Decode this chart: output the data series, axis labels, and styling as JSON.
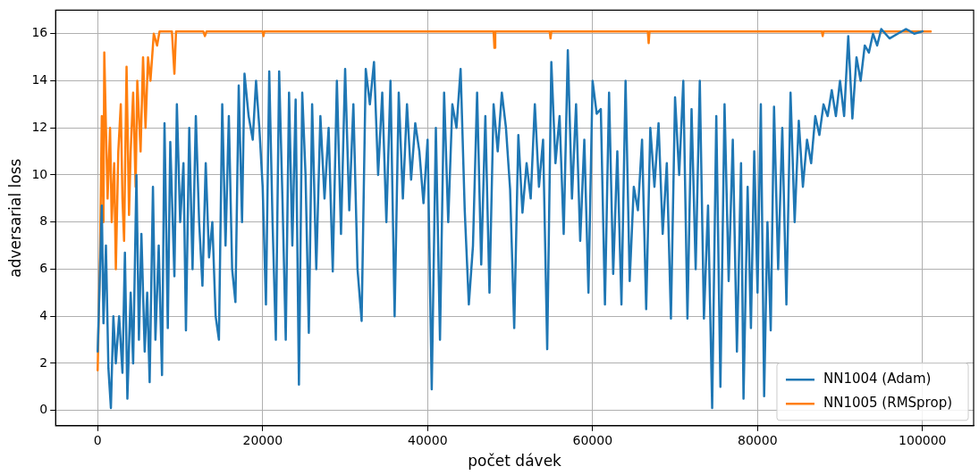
{
  "chart_data": {
    "type": "line",
    "xlabel": "počet dávek",
    "ylabel": "adversarial loss",
    "xlim": [
      -5100,
      106200
    ],
    "ylim": [
      -0.65,
      17.0
    ],
    "xticks": [
      0,
      20000,
      40000,
      60000,
      80000,
      100000
    ],
    "yticks": [
      0,
      2,
      4,
      6,
      8,
      10,
      12,
      14,
      16
    ],
    "grid": true,
    "legend": "bottom right",
    "marker": "none",
    "line_style": "solid",
    "series": [
      {
        "name": "NN1004 (Adam)",
        "color": "#1f77b4",
        "x": [
          0,
          500,
          700,
          1000,
          1300,
          1600,
          1900,
          2200,
          2600,
          3000,
          3300,
          3600,
          4000,
          4300,
          4700,
          5000,
          5300,
          5700,
          6000,
          6300,
          6700,
          7000,
          7400,
          7800,
          8100,
          8500,
          8800,
          9300,
          9600,
          10000,
          10400,
          10700,
          11100,
          11500,
          11900,
          12300,
          12700,
          13100,
          13500,
          13900,
          14300,
          14700,
          15100,
          15500,
          15900,
          16300,
          16700,
          17100,
          17500,
          17800,
          18300,
          18800,
          19200,
          19600,
          20000,
          20400,
          20800,
          21200,
          21600,
          22000,
          22400,
          22800,
          23200,
          23600,
          24000,
          24400,
          24800,
          25200,
          25600,
          26000,
          26500,
          27000,
          27500,
          28000,
          28500,
          29000,
          29500,
          30000,
          30500,
          31000,
          31500,
          32000,
          32500,
          33000,
          33500,
          34000,
          34500,
          35000,
          35500,
          36000,
          36500,
          37000,
          37500,
          38000,
          38500,
          39000,
          39500,
          40000,
          40500,
          41000,
          41500,
          42000,
          42500,
          43000,
          43500,
          44000,
          44500,
          45000,
          45500,
          46000,
          46500,
          47000,
          47500,
          48000,
          48500,
          49000,
          49500,
          50000,
          50500,
          51000,
          51500,
          52000,
          52500,
          53000,
          53500,
          54000,
          54500,
          55000,
          55500,
          56000,
          56500,
          57000,
          57500,
          58000,
          58500,
          59000,
          59500,
          60000,
          60500,
          61000,
          61500,
          62000,
          62500,
          63000,
          63500,
          64000,
          64500,
          65000,
          65500,
          66000,
          66500,
          67000,
          67500,
          68000,
          68500,
          69000,
          69500,
          70000,
          70500,
          71000,
          71500,
          72000,
          72500,
          73000,
          73500,
          74000,
          74500,
          75000,
          75500,
          76000,
          76500,
          77000,
          77500,
          78000,
          78300,
          78800,
          79200,
          79600,
          80000,
          80400,
          80800,
          81200,
          81600,
          82000,
          82500,
          83000,
          83500,
          84000,
          84500,
          85000,
          85500,
          86000,
          86500,
          87000,
          87500,
          88000,
          88500,
          89000,
          89500,
          90000,
          90500,
          91000,
          91500,
          92000,
          92500,
          93000,
          93500,
          94000,
          94500,
          95000,
          96000,
          97000,
          98000,
          99000,
          100000
        ],
        "values": [
          2.5,
          8.7,
          3.7,
          7,
          1.8,
          0.1,
          4,
          2,
          4,
          1.6,
          6.7,
          0.5,
          5,
          2,
          10,
          3,
          7.5,
          2.5,
          5,
          1.2,
          9.5,
          3,
          7,
          1.5,
          12.2,
          3.5,
          11.4,
          5.7,
          13,
          8,
          10.5,
          3.4,
          12,
          6,
          12.5,
          8,
          5.3,
          10.5,
          6.5,
          8,
          4,
          3,
          13,
          7,
          12.5,
          6,
          4.6,
          13.8,
          8,
          14.3,
          12.5,
          11.5,
          14,
          12,
          9.5,
          4.5,
          14.4,
          8,
          3,
          14.4,
          9,
          3,
          13.5,
          7,
          13.2,
          1.1,
          13.5,
          10,
          3.3,
          13,
          6,
          12.5,
          9,
          12,
          5.9,
          14,
          7.5,
          14.5,
          8.5,
          13,
          6,
          3.8,
          14.5,
          13,
          14.8,
          10,
          13.5,
          8,
          14,
          4,
          13.5,
          9,
          13,
          9.8,
          12.2,
          11,
          8.8,
          11.5,
          0.9,
          12,
          3,
          13.5,
          8,
          13,
          12,
          14.5,
          8.5,
          4.5,
          7,
          13.5,
          6.2,
          12.5,
          5,
          13,
          11,
          13.5,
          12,
          9.4,
          3.5,
          11.7,
          8.4,
          10.5,
          9,
          13,
          9.5,
          11.5,
          2.6,
          14.8,
          10.5,
          12.5,
          7.5,
          15.3,
          9,
          13,
          7.2,
          11.5,
          5,
          14,
          12.6,
          12.8,
          4.5,
          13.5,
          5.8,
          11,
          4.5,
          14,
          5.5,
          9.5,
          8.5,
          11.5,
          4.3,
          12,
          9.5,
          12.2,
          7.5,
          10.5,
          3.9,
          13.3,
          10,
          14,
          3.9,
          12.8,
          6,
          14,
          3.9,
          8.7,
          0.1,
          12.5,
          1,
          13,
          5.5,
          11.5,
          2.5,
          10.5,
          0.5,
          9.5,
          3.5,
          11,
          5,
          13,
          0.6,
          8,
          3.4,
          12.9,
          6,
          12,
          4.5,
          13.5,
          8,
          12.3,
          9.5,
          11.5,
          10.5,
          12.5,
          11.7,
          13,
          12.5,
          13.6,
          12.5,
          14,
          12.5,
          15.9,
          12.4,
          15,
          14,
          15.5,
          15.2,
          16,
          15.5,
          16.2,
          15.8,
          16,
          16.2,
          16,
          16.1
        ]
      },
      {
        "name": "NN1005 (RMSprop)",
        "color": "#ff7f0e",
        "x": [
          0,
          300,
          500,
          700,
          800,
          1000,
          1200,
          1500,
          1700,
          2000,
          2200,
          2500,
          2800,
          3000,
          3200,
          3500,
          3800,
          4000,
          4300,
          4600,
          4800,
          5200,
          5500,
          5800,
          6100,
          6400,
          6800,
          7200,
          7500,
          9000,
          9300,
          9500,
          12800,
          13000,
          13200,
          20000,
          20100,
          20200,
          48000,
          48100,
          48200,
          54800,
          54900,
          55000,
          66700,
          66800,
          66900,
          87800,
          87900,
          88000,
          101000
        ],
        "values": [
          1.7,
          7,
          12.5,
          8,
          15.2,
          12,
          9,
          12,
          8,
          10.5,
          6,
          11,
          13,
          9,
          7.2,
          14.6,
          8.3,
          11,
          13.5,
          9.5,
          14,
          11,
          15,
          12,
          15,
          14,
          16,
          15.5,
          16.1,
          16.1,
          14.3,
          16.1,
          16.1,
          15.9,
          16.1,
          16.1,
          15.9,
          16.1,
          16.1,
          15.4,
          16.1,
          16.1,
          15.8,
          16.1,
          16.1,
          15.6,
          16.1,
          16.1,
          15.9,
          16.1,
          16.1
        ]
      }
    ]
  }
}
